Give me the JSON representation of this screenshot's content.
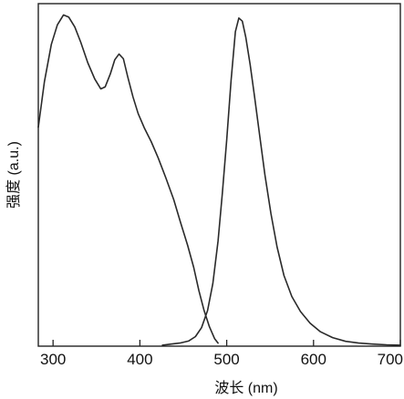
{
  "chart_data": {
    "type": "line",
    "title": "",
    "xlabel": "波长 (nm)",
    "ylabel": "强度 (a.u.)",
    "xlim": [
      283,
      700
    ],
    "ylim": [
      0,
      1.0
    ],
    "x_ticks": [
      300,
      400,
      500,
      600,
      700
    ],
    "x_tick_labels": [
      "300",
      "400",
      "500",
      "600",
      "700"
    ],
    "y_ticks_shown": false,
    "grid": false,
    "legend": "none",
    "line_color": "#2a2a2a",
    "series": [
      {
        "x": [
          283,
          290,
          298,
          305,
          312,
          318,
          325,
          332,
          340,
          348,
          355,
          360,
          366,
          371,
          376,
          381,
          386,
          392,
          398,
          405,
          413,
          421,
          430,
          439,
          447,
          455,
          462,
          468,
          474,
          480,
          486,
          490
        ],
        "y": [
          0.639,
          0.772,
          0.881,
          0.938,
          0.967,
          0.961,
          0.932,
          0.887,
          0.827,
          0.78,
          0.751,
          0.757,
          0.795,
          0.836,
          0.853,
          0.839,
          0.786,
          0.728,
          0.679,
          0.638,
          0.597,
          0.55,
          0.491,
          0.428,
          0.36,
          0.294,
          0.23,
          0.162,
          0.104,
          0.057,
          0.022,
          0.009
        ]
      },
      {
        "x": [
          426,
          436,
          446,
          456,
          464,
          471,
          478,
          484,
          490,
          495,
          500,
          505,
          510,
          514,
          518,
          522,
          527,
          532,
          538,
          544,
          551,
          558,
          566,
          575,
          585,
          596,
          608,
          622,
          637,
          652,
          668,
          684,
          700
        ],
        "y": [
          0.003,
          0.006,
          0.009,
          0.015,
          0.028,
          0.054,
          0.104,
          0.183,
          0.307,
          0.446,
          0.602,
          0.776,
          0.918,
          0.958,
          0.949,
          0.902,
          0.822,
          0.729,
          0.614,
          0.5,
          0.387,
          0.29,
          0.206,
          0.145,
          0.101,
          0.067,
          0.042,
          0.025,
          0.014,
          0.009,
          0.006,
          0.004,
          0.003
        ]
      }
    ]
  }
}
